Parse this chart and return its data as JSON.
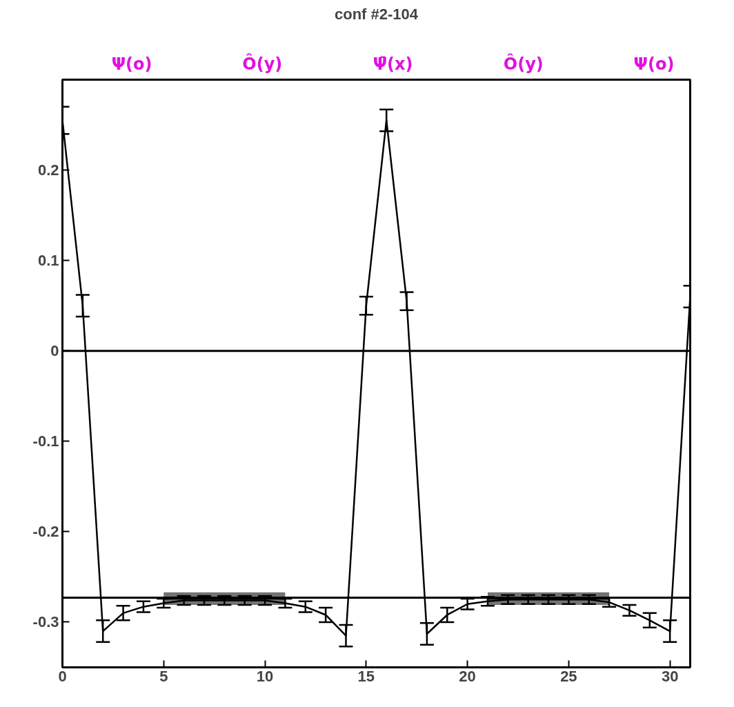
{
  "chart_data": {
    "type": "line",
    "title": "conf #2-104",
    "x": [
      0,
      1,
      2,
      3,
      4,
      5,
      6,
      7,
      8,
      9,
      10,
      11,
      12,
      13,
      14,
      15,
      16,
      17,
      18,
      19,
      20,
      21,
      22,
      23,
      24,
      25,
      26,
      27,
      28,
      29,
      30,
      31
    ],
    "series": [
      {
        "color": "#000000",
        "values": [
          0.255,
          0.05,
          -0.31,
          -0.29,
          -0.283,
          -0.279,
          -0.276,
          -0.276,
          -0.276,
          -0.276,
          -0.276,
          -0.279,
          -0.283,
          -0.292,
          -0.315,
          0.05,
          0.255,
          0.055,
          -0.313,
          -0.292,
          -0.28,
          -0.277,
          -0.275,
          -0.275,
          -0.275,
          -0.275,
          -0.275,
          -0.278,
          -0.287,
          -0.298,
          -0.31,
          0.06
        ],
        "errors": [
          0.015,
          0.012,
          0.012,
          0.008,
          0.006,
          0.005,
          0.005,
          0.005,
          0.005,
          0.005,
          0.005,
          0.005,
          0.006,
          0.008,
          0.012,
          0.01,
          0.012,
          0.01,
          0.012,
          0.008,
          0.006,
          0.005,
          0.005,
          0.005,
          0.005,
          0.005,
          0.005,
          0.005,
          0.006,
          0.008,
          0.012,
          0.012
        ]
      },
      {
        "color": "#000000",
        "x": [
          5,
          11
        ],
        "values": [
          -0.274,
          -0.274
        ],
        "lower": [
          -0.281,
          -0.281
        ],
        "upper": [
          -0.267,
          -0.267
        ]
      },
      {
        "color": "#000000",
        "x": [
          21,
          27
        ],
        "values": [
          -0.274,
          -0.274
        ],
        "lower": [
          -0.281,
          -0.281
        ],
        "upper": [
          -0.267,
          -0.267
        ]
      }
    ],
    "ref_lines": [
      {
        "axis": "y",
        "value": 0,
        "color": "#000000"
      },
      {
        "axis": "y",
        "value": -0.273,
        "color": "#000000"
      }
    ],
    "xlim": [
      0,
      31
    ],
    "ylim": [
      -0.35,
      0.3
    ],
    "xticks": [
      0,
      5,
      10,
      15,
      20,
      25,
      30
    ],
    "yticks": [
      -0.3,
      -0.2,
      -0.1,
      0,
      0.1,
      0.2
    ],
    "annotations": [
      "Ψ(o)",
      "Ô(y)",
      "Ψ̄(x)",
      "Ô(y)",
      "Ψ(o)"
    ],
    "grid": false,
    "marker": "none",
    "line_style": "solid"
  }
}
